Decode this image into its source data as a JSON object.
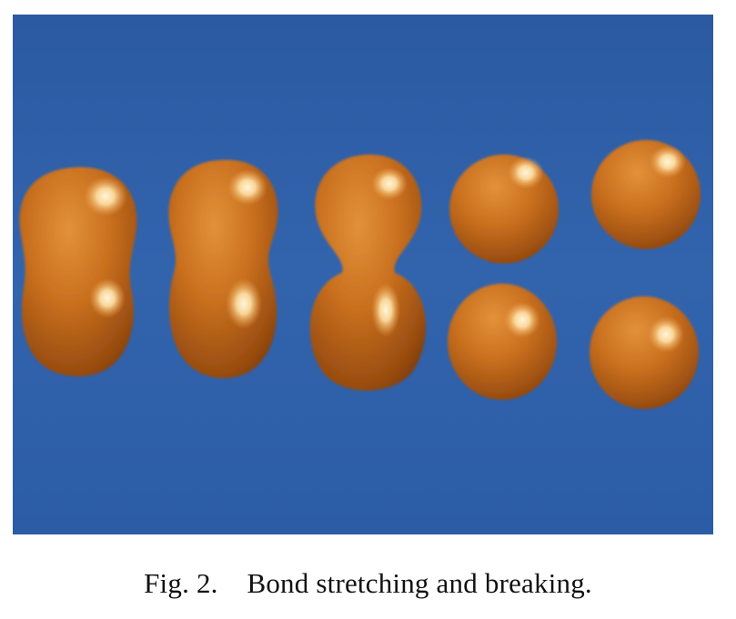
{
  "figure": {
    "caption_label": "Fig. 2.",
    "caption_text": "Bond stretching and breaking.",
    "background_color": "#2f5fa8",
    "blob_color": "#c8711f"
  }
}
